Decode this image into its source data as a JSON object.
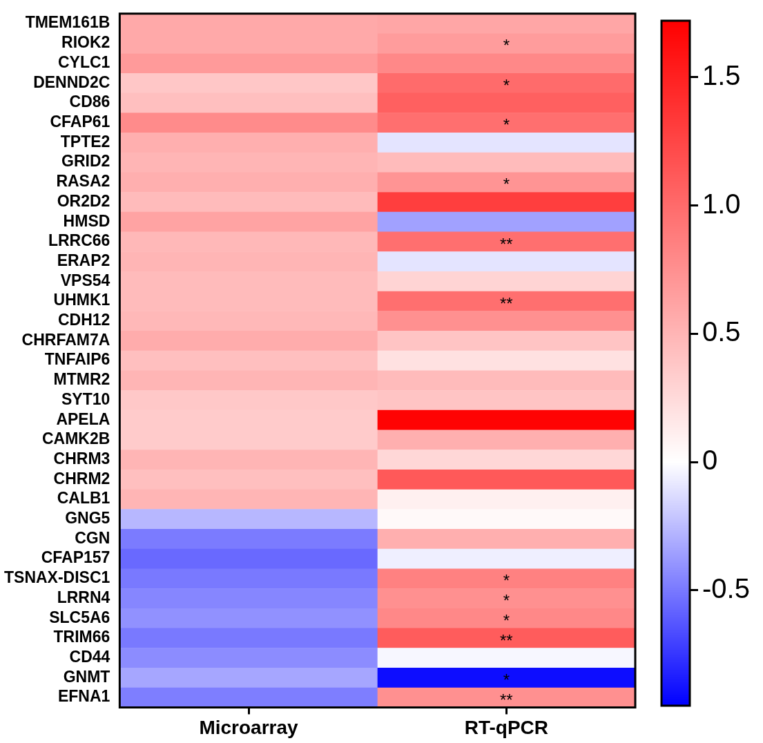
{
  "chart_data": {
    "type": "heatmap",
    "categories": [
      "Microarray",
      "RT-qPCR"
    ],
    "y_categories": [
      "TMEM161B",
      "RIOK2",
      "CYLC1",
      "DENND2C",
      "CD86",
      "CFAP61",
      "TPTE2",
      "GRID2",
      "RASA2",
      "OR2D2",
      "HMSD",
      "LRRC66",
      "ERAP2",
      "VPS54",
      "UHMK1",
      "CDH12",
      "CHRFAM7A",
      "TNFAIP6",
      "MTMR2",
      "SYT10",
      "APELA",
      "CAMK2B",
      "CHRM3",
      "CHRM2",
      "CALB1",
      "GNG5",
      "CGN",
      "CFAP157",
      "TSNAX-DISC1",
      "LRRN4",
      "SLC5A6",
      "TRIM66",
      "CD44",
      "GNMT",
      "EFNA1"
    ],
    "cells": [
      [
        0.58,
        0.6
      ],
      [
        0.58,
        0.67
      ],
      [
        0.68,
        0.8
      ],
      [
        0.38,
        1.0
      ],
      [
        0.43,
        1.07
      ],
      [
        0.78,
        0.97
      ],
      [
        0.54,
        -0.1
      ],
      [
        0.5,
        0.46
      ],
      [
        0.54,
        0.72
      ],
      [
        0.46,
        1.3
      ],
      [
        0.62,
        -0.35
      ],
      [
        0.48,
        0.97
      ],
      [
        0.5,
        -0.1
      ],
      [
        0.46,
        0.29
      ],
      [
        0.46,
        0.97
      ],
      [
        0.48,
        0.75
      ],
      [
        0.56,
        0.4
      ],
      [
        0.43,
        0.2
      ],
      [
        0.5,
        0.46
      ],
      [
        0.37,
        0.4
      ],
      [
        0.35,
        1.7
      ],
      [
        0.35,
        0.54
      ],
      [
        0.5,
        0.27
      ],
      [
        0.43,
        1.12
      ],
      [
        0.5,
        0.1
      ],
      [
        -0.27,
        0.04
      ],
      [
        -0.49,
        0.54
      ],
      [
        -0.56,
        -0.06
      ],
      [
        -0.5,
        0.85
      ],
      [
        -0.45,
        0.75
      ],
      [
        -0.41,
        0.8
      ],
      [
        -0.5,
        1.1
      ],
      [
        -0.43,
        -0.03
      ],
      [
        -0.33,
        -0.9
      ],
      [
        -0.48,
        0.75
      ]
    ],
    "cell_labels": [
      [
        null,
        null
      ],
      [
        null,
        "*"
      ],
      [
        null,
        null
      ],
      [
        null,
        "*"
      ],
      [
        null,
        null
      ],
      [
        null,
        "*"
      ],
      [
        null,
        null
      ],
      [
        null,
        null
      ],
      [
        null,
        "*"
      ],
      [
        null,
        null
      ],
      [
        null,
        null
      ],
      [
        null,
        "**"
      ],
      [
        null,
        null
      ],
      [
        null,
        null
      ],
      [
        null,
        "**"
      ],
      [
        null,
        null
      ],
      [
        null,
        null
      ],
      [
        null,
        null
      ],
      [
        null,
        null
      ],
      [
        null,
        null
      ],
      [
        null,
        null
      ],
      [
        null,
        null
      ],
      [
        null,
        null
      ],
      [
        null,
        null
      ],
      [
        null,
        null
      ],
      [
        null,
        null
      ],
      [
        null,
        null
      ],
      [
        null,
        null
      ],
      [
        null,
        "*"
      ],
      [
        null,
        "*"
      ],
      [
        null,
        "*"
      ],
      [
        null,
        "**"
      ],
      [
        null,
        null
      ],
      [
        null,
        "*"
      ],
      [
        null,
        "**"
      ]
    ],
    "clim": [
      -0.95,
      1.72
    ],
    "cticks": [
      {
        "value": -0.5,
        "label": "-0.5"
      },
      {
        "value": 0,
        "label": "0"
      },
      {
        "value": 0.5,
        "label": "0.5"
      },
      {
        "value": 1,
        "label": "1.0"
      },
      {
        "value": 1.5,
        "label": "1.5"
      }
    ]
  }
}
